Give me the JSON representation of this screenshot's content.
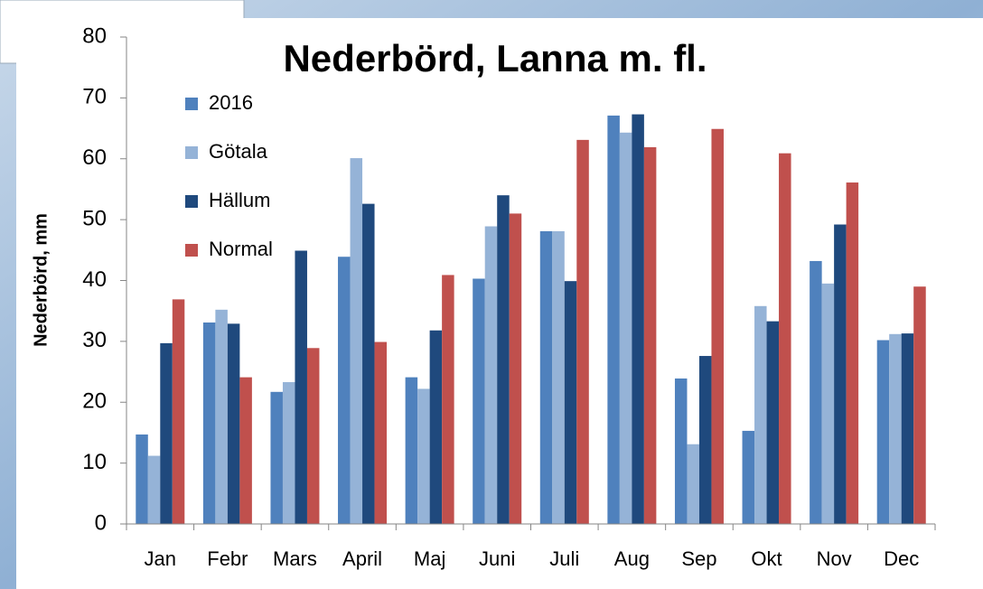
{
  "chart_data": {
    "type": "bar",
    "title": "Nederbörd, Lanna m. fl.",
    "y_label": "Nederbörd, mm",
    "categories": [
      "Jan",
      "Febr",
      "Mars",
      "April",
      "Maj",
      "Juni",
      "Juli",
      "Aug",
      "Sep",
      "Okt",
      "Nov",
      "Dec"
    ],
    "series": [
      {
        "name": "2016",
        "color": "#4f81bd",
        "values": [
          14.7,
          33.1,
          21.7,
          43.9,
          24.1,
          40.3,
          48.1,
          67.1,
          23.9,
          15.3,
          43.2,
          30.2
        ]
      },
      {
        "name": "Götala",
        "color": "#95b3d7",
        "values": [
          11.2,
          35.2,
          23.3,
          60.1,
          22.2,
          48.9,
          48.1,
          64.3,
          13.1,
          35.8,
          39.5,
          31.2
        ]
      },
      {
        "name": "Hällum",
        "color": "#1f497d",
        "values": [
          29.7,
          32.9,
          44.9,
          52.6,
          31.8,
          54.0,
          39.9,
          67.3,
          27.6,
          33.3,
          49.2,
          31.3
        ]
      },
      {
        "name": "Normal",
        "color": "#c0504d",
        "values": [
          36.9,
          24.1,
          28.9,
          29.9,
          40.9,
          51.0,
          63.1,
          61.9,
          64.9,
          60.9,
          56.1,
          39.0
        ]
      }
    ],
    "ylim": [
      0,
      80
    ],
    "yticks": [
      0,
      10,
      20,
      30,
      40,
      50,
      60,
      70,
      80
    ],
    "grid": false,
    "legend": "upper left"
  }
}
